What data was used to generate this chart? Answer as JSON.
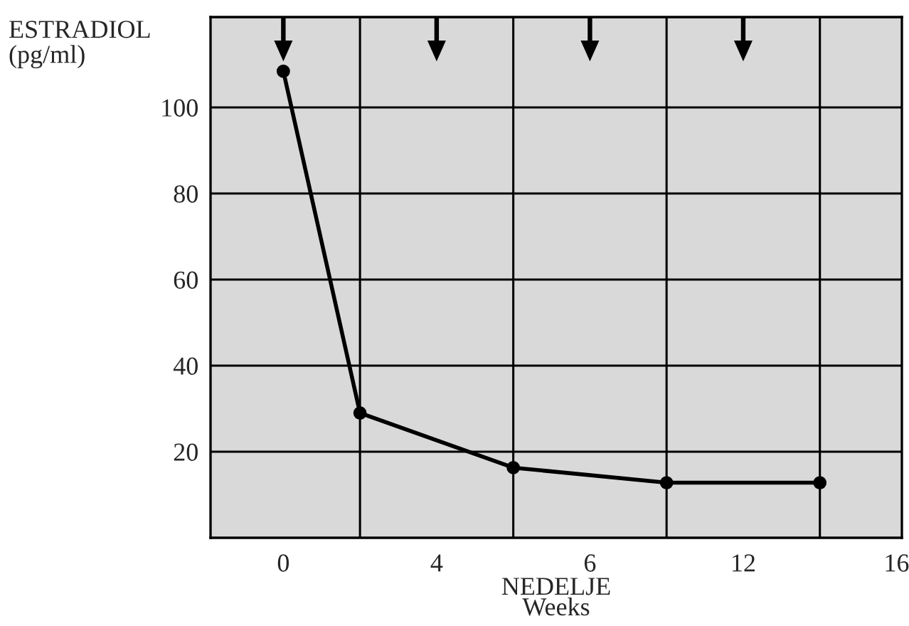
{
  "chart_data": {
    "type": "line",
    "categories": [
      "0",
      null,
      "4",
      null,
      "6",
      null,
      "12",
      null,
      "16"
    ],
    "series": [
      {
        "color": "#000000",
        "values": [
          108.4,
          29,
          null,
          16.3,
          null,
          12.8,
          null,
          12.8,
          null
        ]
      }
    ],
    "ylim": [
      0,
      121
    ],
    "yticks": [
      20,
      40,
      60,
      80,
      100
    ],
    "ylabel": "ESTRADIOL\n(pg/ml)",
    "xlabel": "NEDELJE\nWeeks",
    "grid": true,
    "marker": "circle",
    "line_style": "solid"
  }
}
